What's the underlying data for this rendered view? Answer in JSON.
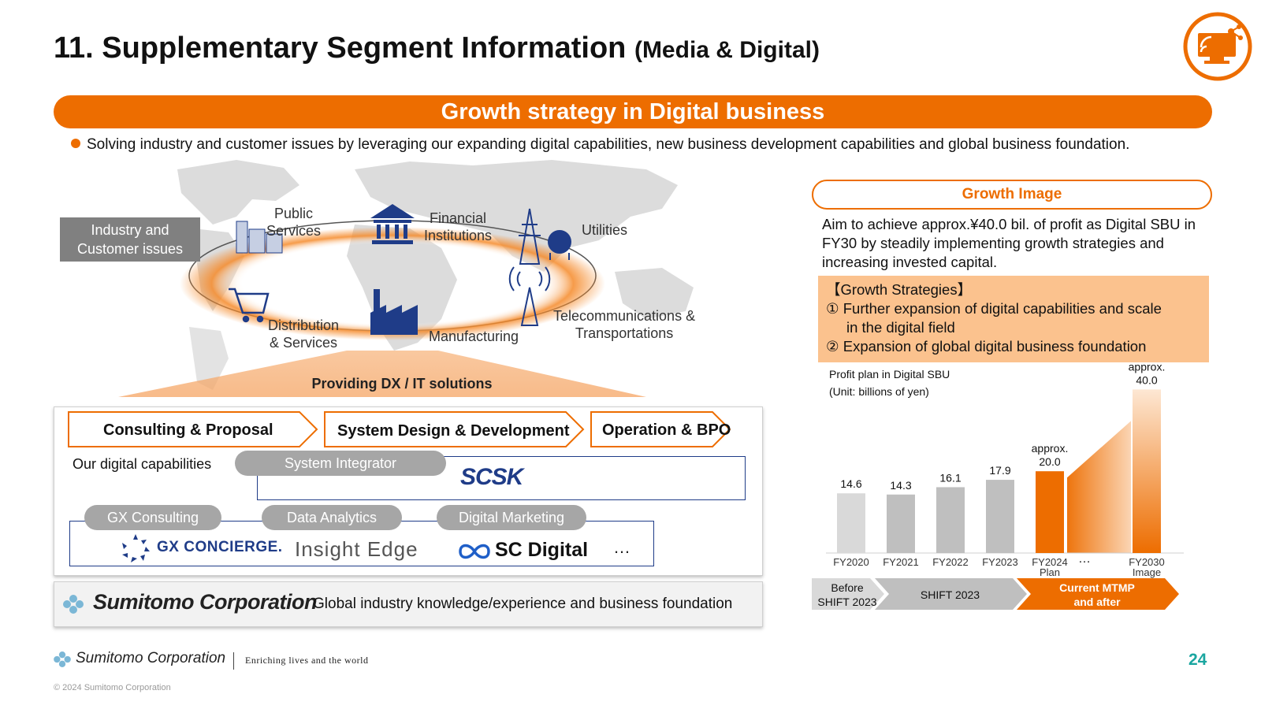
{
  "header": {
    "title": "11. Supplementary Segment Information",
    "title_suffix": "(Media & Digital)",
    "banner": "Growth strategy in Digital business",
    "bullet": "Solving industry and customer issues by leveraging our expanding digital capabilities, new business development capabilities and global business foundation."
  },
  "map": {
    "industry_box_line1": "Industry and",
    "industry_box_line2": "Customer issues",
    "sectors": {
      "public_line1": "Public",
      "public_line2": "Services",
      "financial_line1": "Financial",
      "financial_line2": "Institutions",
      "utilities": "Utilities",
      "distribution_line1": "Distribution",
      "distribution_line2": "& Services",
      "manufacturing": "Manufacturing",
      "telecom_line1": "Telecommunications &",
      "telecom_line2": "Transportations"
    },
    "dx_label": "Providing DX / IT solutions"
  },
  "capabilities": {
    "chevrons": [
      "Consulting & Proposal",
      "System Design & Development",
      "Operation & BPO"
    ],
    "label": "Our digital capabilities",
    "system_integrator": "System Integrator",
    "scsk": "SCSK",
    "pills": [
      "GX Consulting",
      "Data Analytics",
      "Digital Marketing"
    ],
    "gx_concierge": "GX CONCIERGE.",
    "insight_edge": "Insight Edge",
    "sc_digital": "SC Digital",
    "more": "…"
  },
  "foundation": {
    "company": "Sumitomo Corporation",
    "text": "Global industry knowledge/experience and business foundation"
  },
  "growth": {
    "header": "Growth Image",
    "description": "Aim to achieve approx.¥40.0 bil. of profit as Digital SBU in FY30 by steadily implementing growth strategies and increasing invested capital.",
    "strategies_title": "【Growth Strategies】",
    "strategy1_line1": "① Further expansion of digital capabilities and scale",
    "strategy1_line2": "in the digital field",
    "strategy2": "② Expansion of global digital business foundation"
  },
  "chart_data": {
    "type": "bar",
    "title": "Profit plan in Digital SBU",
    "subtitle": "(Unit: billions of yen)",
    "categories": [
      "FY2020",
      "FY2021",
      "FY2022",
      "FY2023",
      "FY2024",
      "FY2030"
    ],
    "category_sublabels": [
      "",
      "",
      "",
      "",
      "Plan",
      "Image"
    ],
    "values": [
      14.6,
      14.3,
      16.1,
      17.9,
      20.0,
      40.0
    ],
    "value_labels": [
      "14.6",
      "14.3",
      "16.1",
      "17.9",
      "20.0",
      "40.0"
    ],
    "value_prefix": [
      "",
      "",
      "",
      "",
      "approx.",
      "approx."
    ],
    "gap_label": "…",
    "ylim": [
      0,
      42
    ],
    "colors": [
      "#d9d9d9",
      "#bfbfbf",
      "#bfbfbf",
      "#bfbfbf",
      "#ed6d00",
      "#ed6d00"
    ],
    "phases": [
      {
        "line1": "Before",
        "line2": "SHIFT 2023",
        "color": "#d9d9d9",
        "text_color": "#111111"
      },
      {
        "line1": "SHIFT 2023",
        "line2": "",
        "color": "#bfbfbf",
        "text_color": "#111111"
      },
      {
        "line1": "Current MTMP",
        "line2": "and after",
        "color": "#ed6d00",
        "text_color": "#ffffff"
      }
    ]
  },
  "footer": {
    "company": "Sumitomo Corporation",
    "tagline": "Enriching lives and the world",
    "page": "24",
    "copyright": "© 2024 Sumitomo Corporation"
  },
  "colors": {
    "accent": "#ed6d00",
    "navy": "#1f3c88",
    "teal": "#1aa6a0"
  }
}
